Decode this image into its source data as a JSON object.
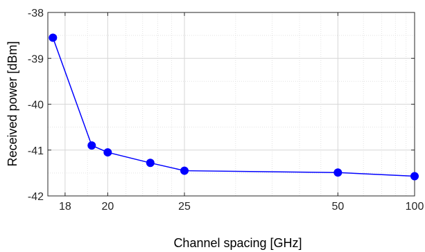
{
  "chart_data": {
    "type": "line",
    "xlabel": "Channel spacing [GHz]",
    "ylabel": "Received power [dBm]",
    "x_scale": "reciprocal",
    "xlim": [
      17.3,
      100
    ],
    "ylim": [
      -42,
      -38
    ],
    "x_ticks": [
      18,
      20,
      25,
      50,
      100
    ],
    "x_tick_labels": [
      "18",
      "20",
      "25",
      "50",
      "100"
    ],
    "y_ticks": [
      -42,
      -41,
      -40,
      -39,
      -38
    ],
    "y_tick_labels": [
      "-42",
      "-41",
      "-40",
      "-39",
      "-38"
    ],
    "grid": true,
    "series": [
      {
        "color": "#0000ff",
        "marker": "circle",
        "x": [
          17.5,
          19.2,
          20,
          22.5,
          25,
          50,
          100
        ],
        "y": [
          -38.55,
          -40.9,
          -41.05,
          -41.28,
          -41.45,
          -41.49,
          -41.57
        ]
      }
    ]
  }
}
